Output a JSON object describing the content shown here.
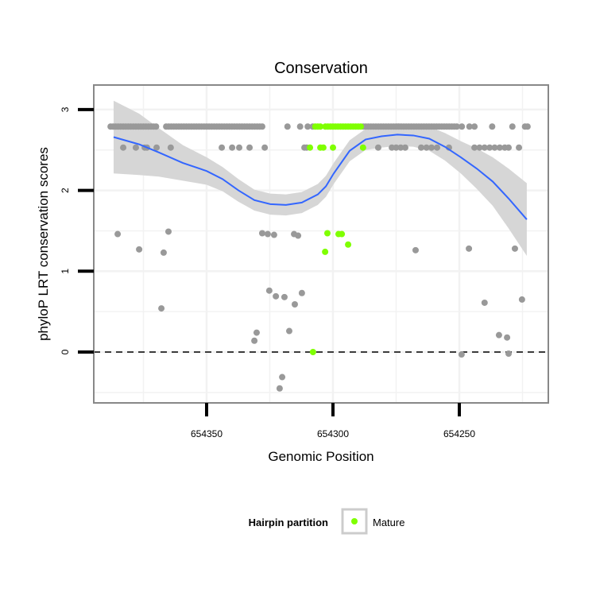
{
  "chart_data": {
    "type": "scatter",
    "title": "Conservation",
    "xlabel": "Genomic Position",
    "ylabel": "phyloP LRT conservation scores",
    "xlim": [
      654395,
      654215
    ],
    "x_reversed": true,
    "ylim": [
      -0.63,
      3.3
    ],
    "x_ticks": [
      654350,
      654300,
      654250
    ],
    "x_tick_labels": [
      "654350",
      "654300",
      "654250"
    ],
    "y_ticks": [
      0,
      1,
      2,
      3
    ],
    "y_tick_labels": [
      "0",
      "1",
      "2",
      "3"
    ],
    "grid": true,
    "reference_line": {
      "y": 0,
      "style": "dashed"
    },
    "legend": {
      "title": "Hairpin partition",
      "entries": [
        {
          "label": "Mature",
          "color": "#7fff00"
        }
      ],
      "position": "bottom"
    },
    "colors": {
      "other": "#999999",
      "mature": "#7fff00",
      "smooth": "#3366ff",
      "band": "#d4d4d4"
    },
    "series": [
      {
        "name": "other",
        "points": [
          [
            654388,
            2.79
          ],
          [
            654387,
            2.79
          ],
          [
            654386,
            2.79
          ],
          [
            654385,
            2.79
          ],
          [
            654384,
            2.79
          ],
          [
            654383,
            2.79
          ],
          [
            654382,
            2.79
          ],
          [
            654381,
            2.79
          ],
          [
            654380,
            2.79
          ],
          [
            654379,
            2.79
          ],
          [
            654378,
            2.79
          ],
          [
            654377,
            2.79
          ],
          [
            654376,
            2.79
          ],
          [
            654375,
            2.79
          ],
          [
            654374,
            2.79
          ],
          [
            654373,
            2.79
          ],
          [
            654372,
            2.79
          ],
          [
            654371,
            2.79
          ],
          [
            654370,
            2.79
          ],
          [
            654366,
            2.79
          ],
          [
            654365,
            2.79
          ],
          [
            654364,
            2.79
          ],
          [
            654363,
            2.79
          ],
          [
            654362,
            2.79
          ],
          [
            654361,
            2.79
          ],
          [
            654360,
            2.79
          ],
          [
            654359,
            2.79
          ],
          [
            654358,
            2.79
          ],
          [
            654357,
            2.79
          ],
          [
            654356,
            2.79
          ],
          [
            654355,
            2.79
          ],
          [
            654354,
            2.79
          ],
          [
            654353,
            2.79
          ],
          [
            654352,
            2.79
          ],
          [
            654351,
            2.79
          ],
          [
            654350,
            2.79
          ],
          [
            654349,
            2.79
          ],
          [
            654348,
            2.79
          ],
          [
            654347,
            2.79
          ],
          [
            654346,
            2.79
          ],
          [
            654345,
            2.79
          ],
          [
            654344,
            2.79
          ],
          [
            654343,
            2.79
          ],
          [
            654342,
            2.79
          ],
          [
            654341,
            2.79
          ],
          [
            654340,
            2.79
          ],
          [
            654339,
            2.79
          ],
          [
            654338,
            2.79
          ],
          [
            654337,
            2.79
          ],
          [
            654336,
            2.79
          ],
          [
            654335,
            2.79
          ],
          [
            654334,
            2.79
          ],
          [
            654333,
            2.79
          ],
          [
            654332,
            2.79
          ],
          [
            654331,
            2.79
          ],
          [
            654330,
            2.79
          ],
          [
            654329,
            2.79
          ],
          [
            654328,
            2.79
          ],
          [
            654318,
            2.79
          ],
          [
            654313,
            2.79
          ],
          [
            654310,
            2.79
          ],
          [
            654308,
            2.79
          ],
          [
            654288,
            2.79
          ],
          [
            654287,
            2.79
          ],
          [
            654286,
            2.79
          ],
          [
            654285,
            2.79
          ],
          [
            654284,
            2.79
          ],
          [
            654283,
            2.79
          ],
          [
            654282,
            2.79
          ],
          [
            654281,
            2.79
          ],
          [
            654280,
            2.79
          ],
          [
            654279,
            2.79
          ],
          [
            654278,
            2.79
          ],
          [
            654277,
            2.79
          ],
          [
            654276,
            2.79
          ],
          [
            654275,
            2.79
          ],
          [
            654274,
            2.79
          ],
          [
            654273,
            2.79
          ],
          [
            654272,
            2.79
          ],
          [
            654271,
            2.79
          ],
          [
            654270,
            2.79
          ],
          [
            654269,
            2.79
          ],
          [
            654268,
            2.79
          ],
          [
            654267,
            2.79
          ],
          [
            654266,
            2.79
          ],
          [
            654265,
            2.79
          ],
          [
            654264,
            2.79
          ],
          [
            654263,
            2.79
          ],
          [
            654262,
            2.79
          ],
          [
            654261,
            2.79
          ],
          [
            654260,
            2.79
          ],
          [
            654259,
            2.79
          ],
          [
            654258,
            2.79
          ],
          [
            654257,
            2.79
          ],
          [
            654256,
            2.79
          ],
          [
            654255,
            2.79
          ],
          [
            654254,
            2.79
          ],
          [
            654253,
            2.79
          ],
          [
            654252,
            2.79
          ],
          [
            654251,
            2.79
          ],
          [
            654249,
            2.79
          ],
          [
            654246,
            2.79
          ],
          [
            654244,
            2.79
          ],
          [
            654237,
            2.79
          ],
          [
            654229,
            2.79
          ],
          [
            654224,
            2.79
          ],
          [
            654223,
            2.79
          ],
          [
            654383,
            2.53
          ],
          [
            654378,
            2.53
          ],
          [
            654374.5,
            2.53
          ],
          [
            654373.6,
            2.53
          ],
          [
            654369.8,
            2.53
          ],
          [
            654364.2,
            2.53
          ],
          [
            654344,
            2.53
          ],
          [
            654339.9,
            2.53
          ],
          [
            654337.1,
            2.53
          ],
          [
            654333,
            2.53
          ],
          [
            654327,
            2.53
          ],
          [
            654311.3,
            2.53
          ],
          [
            654310.4,
            2.53
          ],
          [
            654282.1,
            2.53
          ],
          [
            654276.7,
            2.53
          ],
          [
            654275,
            2.53
          ],
          [
            654273.2,
            2.53
          ],
          [
            654271.4,
            2.53
          ],
          [
            654265.1,
            2.53
          ],
          [
            654263,
            2.53
          ],
          [
            654261,
            2.53
          ],
          [
            654258.8,
            2.53
          ],
          [
            654254.1,
            2.53
          ],
          [
            654244,
            2.53
          ],
          [
            654242,
            2.53
          ],
          [
            654240,
            2.53
          ],
          [
            654238,
            2.53
          ],
          [
            654236,
            2.53
          ],
          [
            654234,
            2.53
          ],
          [
            654232,
            2.53
          ],
          [
            654230.5,
            2.53
          ],
          [
            654226.4,
            2.53
          ],
          [
            654385.2,
            1.46
          ],
          [
            654376.7,
            1.27
          ],
          [
            654367.9,
            0.54
          ],
          [
            654367.0,
            1.23
          ],
          [
            654365.1,
            1.49
          ],
          [
            654331.1,
            0.14
          ],
          [
            654330.2,
            0.24
          ],
          [
            654328.0,
            1.47
          ],
          [
            654325.8,
            1.46
          ],
          [
            654325.2,
            0.76
          ],
          [
            654323.3,
            1.45
          ],
          [
            654322.6,
            0.69
          ],
          [
            654321.1,
            -0.45
          ],
          [
            654320.1,
            -0.31
          ],
          [
            654319.2,
            0.68
          ],
          [
            654317.3,
            0.26
          ],
          [
            654315.4,
            1.46
          ],
          [
            654315.1,
            0.59
          ],
          [
            654313.8,
            1.44
          ],
          [
            654312.3,
            0.73
          ],
          [
            654267.3,
            1.26
          ],
          [
            654249.1,
            -0.03
          ],
          [
            654246.2,
            1.28
          ],
          [
            654240.0,
            0.61
          ],
          [
            654234.3,
            0.21
          ],
          [
            654231.1,
            0.18
          ],
          [
            654230.5,
            -0.02
          ],
          [
            654228.0,
            1.28
          ],
          [
            654225.2,
            0.65
          ]
        ]
      },
      {
        "name": "Mature",
        "points": [
          [
            654307,
            2.79
          ],
          [
            654306,
            2.79
          ],
          [
            654305,
            2.79
          ],
          [
            654303,
            2.79
          ],
          [
            654302,
            2.79
          ],
          [
            654301,
            2.79
          ],
          [
            654300,
            2.79
          ],
          [
            654299,
            2.79
          ],
          [
            654298,
            2.79
          ],
          [
            654297,
            2.79
          ],
          [
            654296,
            2.79
          ],
          [
            654295,
            2.79
          ],
          [
            654294,
            2.79
          ],
          [
            654293,
            2.79
          ],
          [
            654292,
            2.79
          ],
          [
            654291,
            2.79
          ],
          [
            654290,
            2.79
          ],
          [
            654289,
            2.79
          ],
          [
            654309.1,
            2.53
          ],
          [
            654305.0,
            2.53
          ],
          [
            654303.8,
            2.53
          ],
          [
            654300.0,
            2.53
          ],
          [
            654288.1,
            2.53
          ],
          [
            654307.9,
            0.0
          ],
          [
            654303.1,
            1.24
          ],
          [
            654302.2,
            1.47
          ],
          [
            654297.8,
            1.46
          ],
          [
            654296.5,
            1.46
          ],
          [
            654294.0,
            1.33
          ]
        ]
      }
    ],
    "smooth": {
      "x": [
        654386.8,
        654376.7,
        654368.9,
        654359.4,
        654350,
        654343.7,
        654337.4,
        654331.1,
        654324.8,
        654318.6,
        654312.3,
        654306.0,
        654302.8,
        654299.7,
        654293.4,
        654287.1,
        654280.8,
        654274.5,
        654268.2,
        654261.9,
        654255.7,
        654249.4,
        654243.1,
        654236.8,
        654230.5,
        654223.3
      ],
      "y": [
        2.66,
        2.57,
        2.47,
        2.34,
        2.24,
        2.14,
        2.0,
        1.88,
        1.83,
        1.82,
        1.85,
        1.95,
        2.05,
        2.21,
        2.49,
        2.63,
        2.67,
        2.69,
        2.68,
        2.64,
        2.54,
        2.41,
        2.27,
        2.11,
        1.9,
        1.64
      ],
      "se": [
        0.45,
        0.38,
        0.3,
        0.22,
        0.17,
        0.15,
        0.14,
        0.13,
        0.13,
        0.13,
        0.13,
        0.13,
        0.13,
        0.13,
        0.13,
        0.13,
        0.14,
        0.14,
        0.14,
        0.15,
        0.17,
        0.2,
        0.25,
        0.3,
        0.37,
        0.45
      ]
    }
  }
}
